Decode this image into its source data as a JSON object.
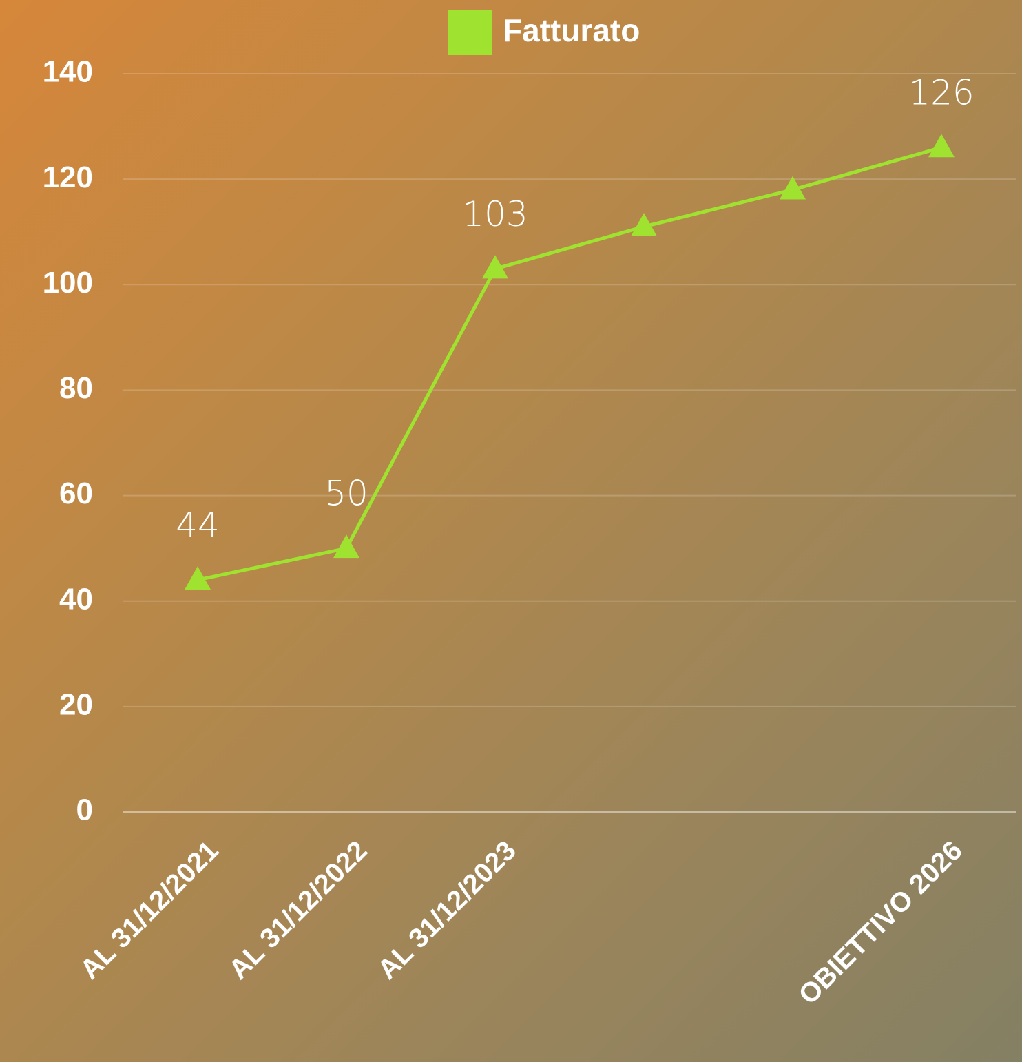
{
  "chart_data": {
    "type": "line",
    "categories": [
      "AL 31/12/2021",
      "AL 31/12/2022",
      "AL 31/12/2023",
      null,
      null,
      "OBIETTIVO 2026"
    ],
    "series": [
      {
        "name": "Fatturato",
        "color": "#9fe22f",
        "values": [
          44,
          50,
          103,
          111,
          118,
          126
        ],
        "value_labels": [
          "44",
          "50",
          "103",
          null,
          null,
          "126"
        ]
      }
    ],
    "ylim": [
      0,
      140
    ],
    "yticks": [
      0,
      20,
      40,
      60,
      80,
      100,
      120,
      140
    ],
    "grid": true,
    "legend": "top"
  }
}
